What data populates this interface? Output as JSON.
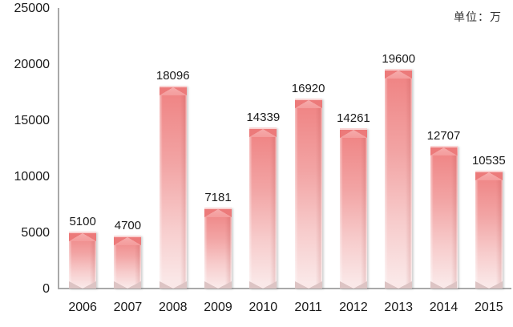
{
  "chart_data": {
    "type": "bar",
    "title": "",
    "unit_label": "单位：万",
    "categories": [
      "2006",
      "2007",
      "2008",
      "2009",
      "2010",
      "2011",
      "2012",
      "2013",
      "2014",
      "2015"
    ],
    "values": [
      5100,
      4700,
      18096,
      7181,
      14339,
      16920,
      14261,
      19600,
      12707,
      10535
    ],
    "xlabel": "",
    "ylabel": "",
    "ylim": [
      0,
      25000
    ],
    "yticks": [
      0,
      5000,
      10000,
      15000,
      20000,
      25000
    ],
    "grid": false,
    "legend": null,
    "colors": {
      "bar_gradient_top": "#ef8181",
      "bar_gradient_bottom": "#fae8e8",
      "bar_cap_light": "#f6abab",
      "bar_cap_dark": "#ec7a7a",
      "bar_base_gray": "#ddc4c4",
      "axis_line": "#a9a9a9",
      "label_text": "#1a1a1a",
      "unit_text": "#333333"
    }
  }
}
